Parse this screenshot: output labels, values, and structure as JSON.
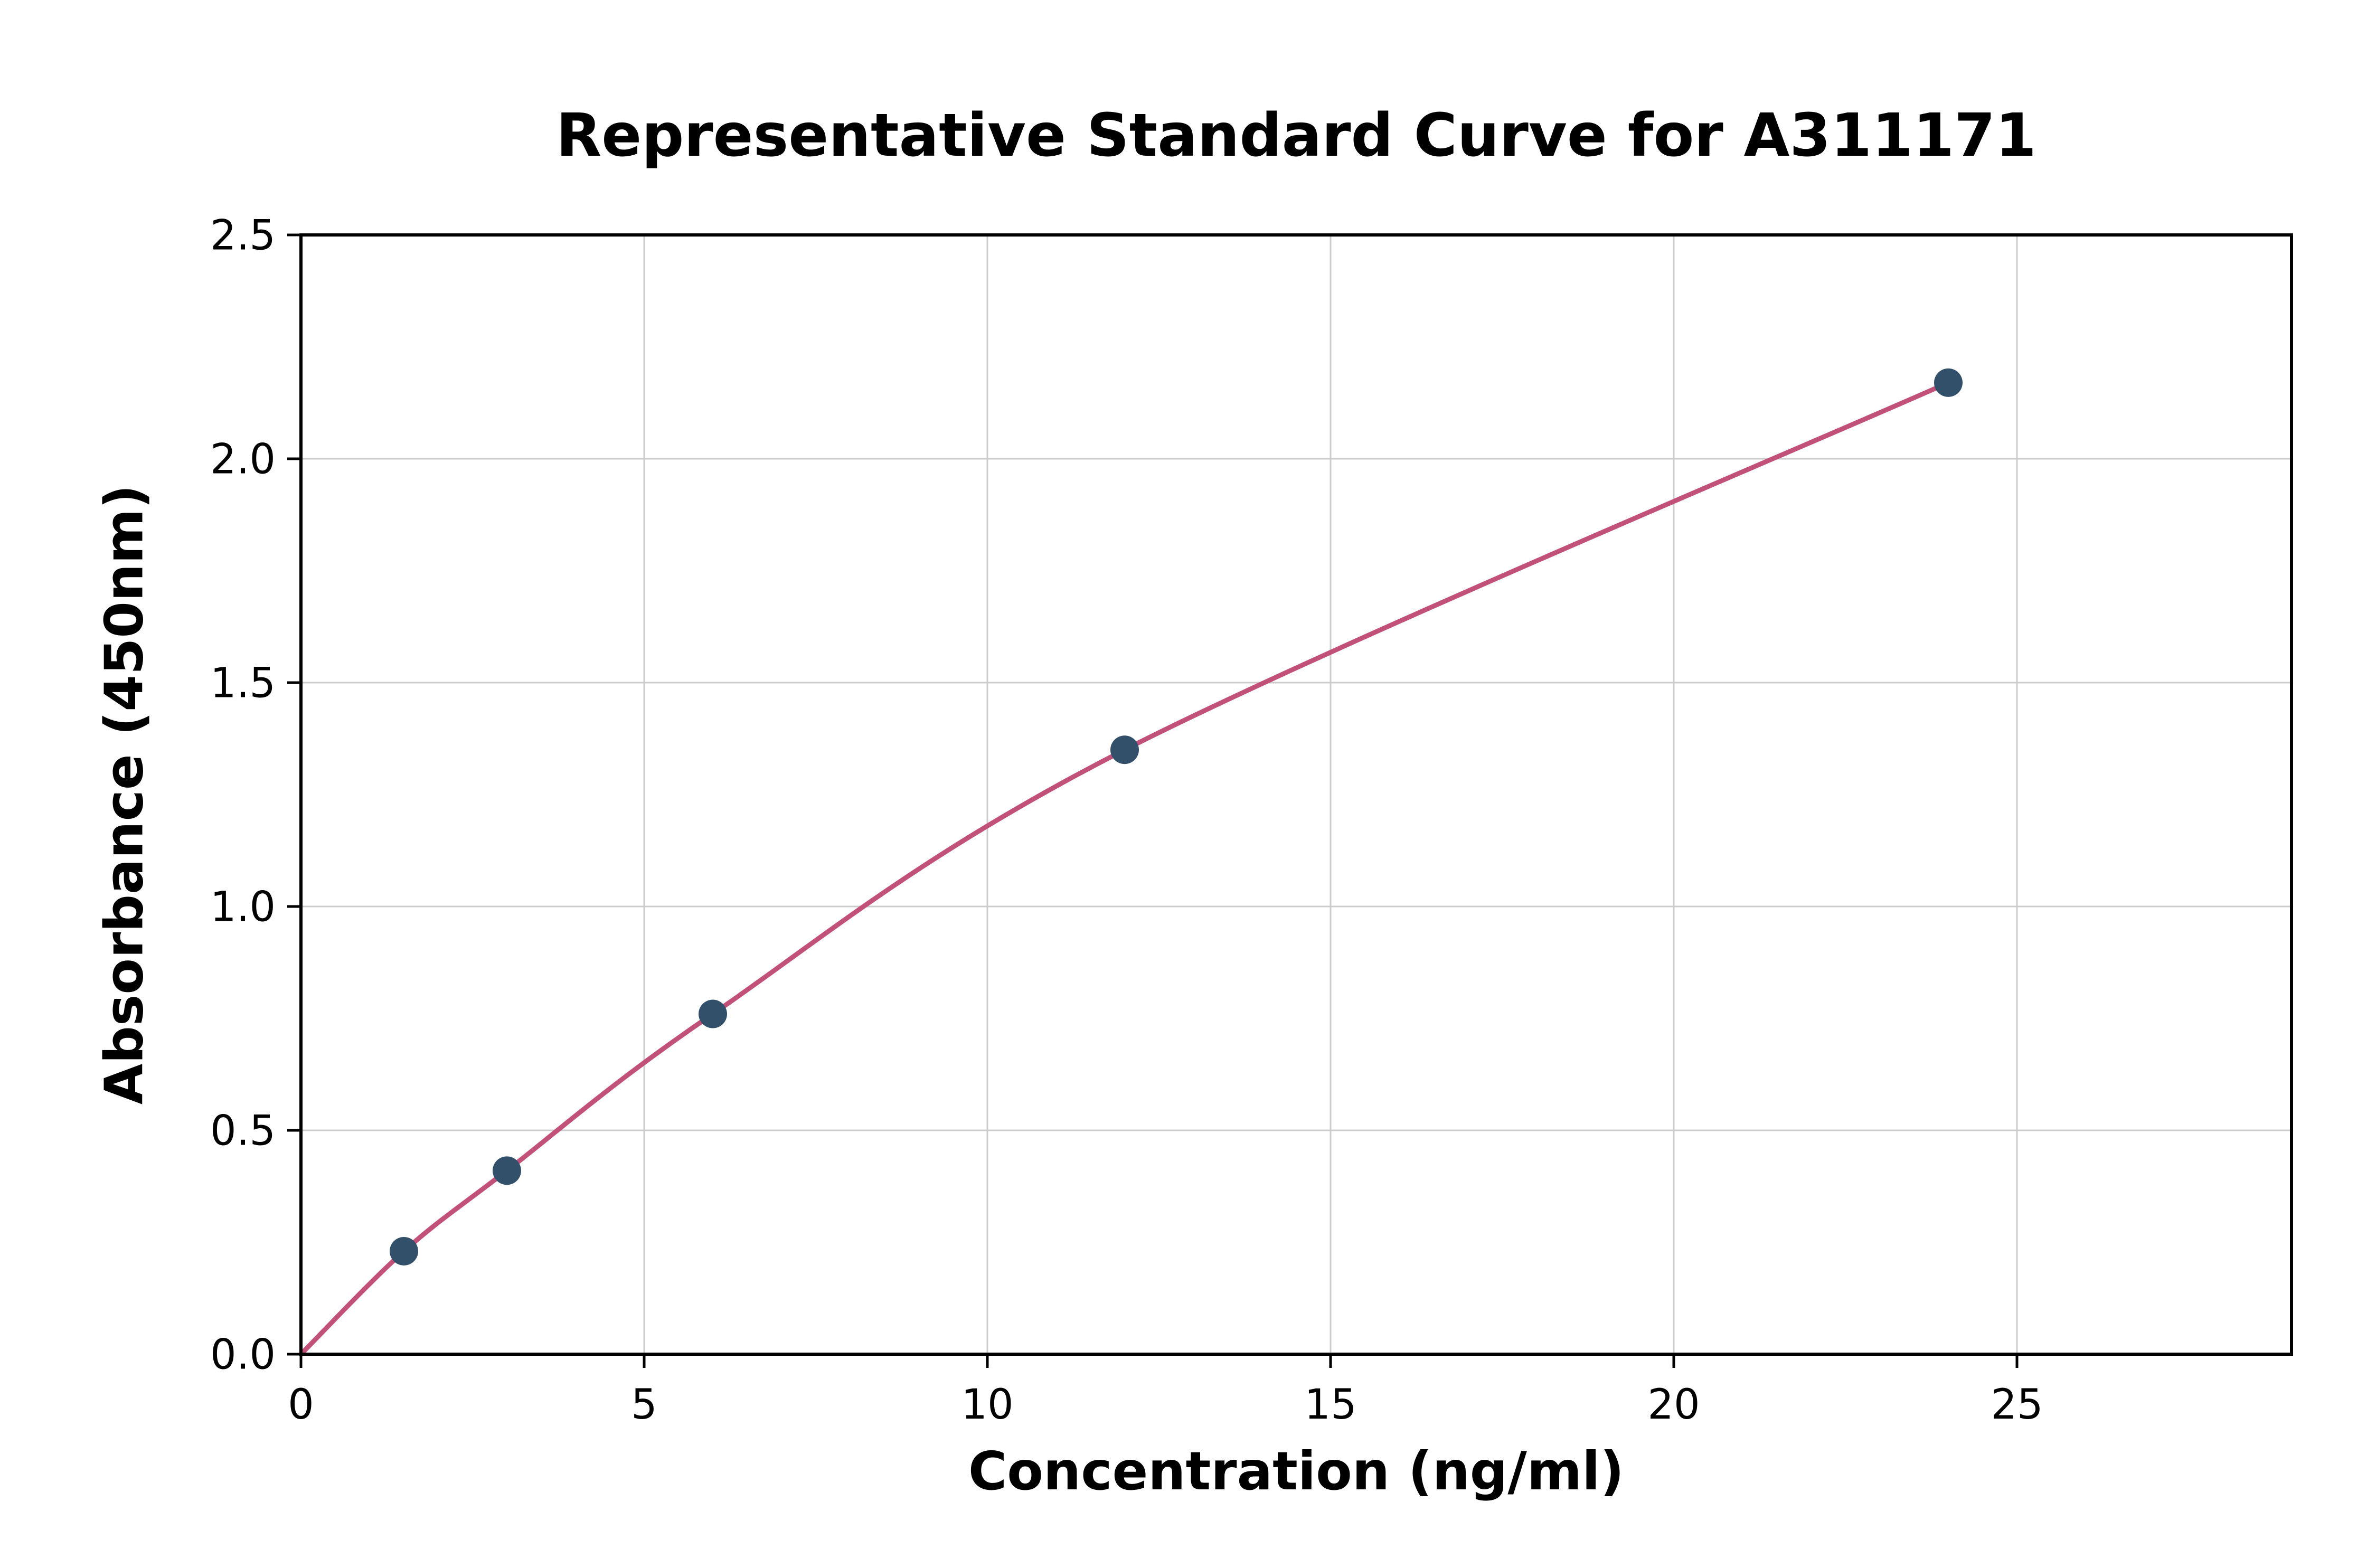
{
  "chart_data": {
    "type": "scatter",
    "title": "Representative Standard Curve for A311171",
    "xlabel": "Concentration (ng/ml)",
    "ylabel": "Absorbance (450nm)",
    "xlim": [
      0,
      29
    ],
    "ylim": [
      0,
      2.5
    ],
    "x_ticks": [
      0,
      5,
      10,
      15,
      20,
      25
    ],
    "y_ticks": [
      0.0,
      0.5,
      1.0,
      1.5,
      2.0,
      2.5
    ],
    "grid": true,
    "legend": "none",
    "points": {
      "x": [
        1.5,
        3,
        6,
        12,
        24
      ],
      "y": [
        0.23,
        0.41,
        0.76,
        1.35,
        2.17
      ]
    },
    "curve_start": {
      "x": 0,
      "y": 0
    },
    "colors": {
      "line": "#c2517a",
      "marker": "#33506b",
      "grid": "#cccccc",
      "axis": "#000000",
      "background": "#ffffff"
    }
  }
}
